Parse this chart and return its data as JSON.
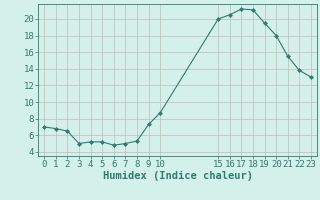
{
  "x": [
    0,
    1,
    2,
    3,
    4,
    5,
    6,
    7,
    8,
    9,
    10,
    15,
    16,
    17,
    18,
    19,
    20,
    21,
    22,
    23
  ],
  "y": [
    7.0,
    6.8,
    6.5,
    5.0,
    5.2,
    5.2,
    4.8,
    5.0,
    5.3,
    7.3,
    8.7,
    20.0,
    20.5,
    21.2,
    21.1,
    19.5,
    18.0,
    15.5,
    13.8,
    13.0
  ],
  "xlim": [
    -0.5,
    23.5
  ],
  "ylim": [
    3.5,
    21.8
  ],
  "xticks": [
    0,
    1,
    2,
    3,
    4,
    5,
    6,
    7,
    8,
    9,
    10,
    15,
    16,
    17,
    18,
    19,
    20,
    21,
    22,
    23
  ],
  "yticks": [
    4,
    6,
    8,
    10,
    12,
    14,
    16,
    18,
    20
  ],
  "xlabel": "Humidex (Indice chaleur)",
  "line_color": "#2e7d6e",
  "marker_color": "#2e7d6e",
  "bg_color": "#d4f0eb",
  "grid_color": "#c8b8b8",
  "axis_color": "#2e7d6e",
  "tick_color": "#2e7d6e",
  "xlabel_color": "#2e7d6e",
  "xlabel_fontsize": 7.5,
  "tick_fontsize": 6.5
}
